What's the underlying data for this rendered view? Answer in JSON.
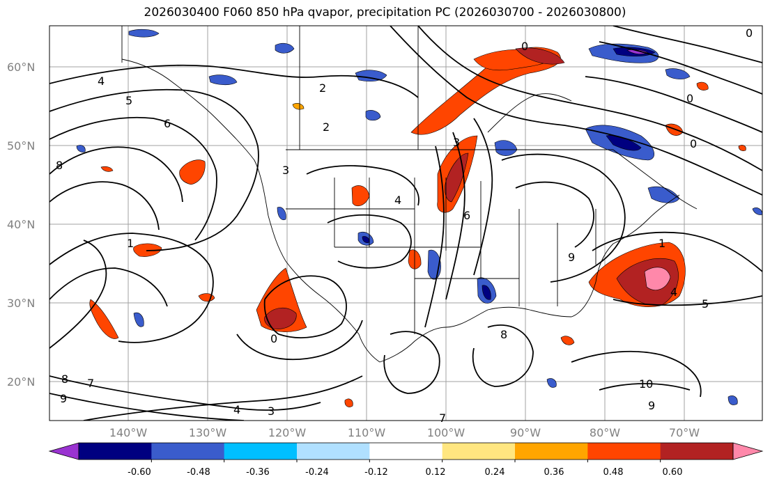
{
  "title": "2026030400 F060 850 hPa qvapor, precipitation PC (2026030700 - 2026030800)",
  "latitude_labels": [
    "60°N",
    "50°N",
    "40°N",
    "30°N",
    "20°N"
  ],
  "longitude_labels": [
    "140°W",
    "130°W",
    "120°W",
    "110°W",
    "100°W",
    "90°W",
    "80°W",
    "70°W"
  ],
  "colorbar": {
    "colors": [
      "#9a33d1",
      "#000080",
      "#3a5ccc",
      "#00bfff",
      "#b0e0ff",
      "#ffffff",
      "#ffe680",
      "#ffa500",
      "#ff4500",
      "#b22222",
      "#ff88aa"
    ],
    "tick_labels": [
      "-0.60",
      "-0.48",
      "-0.36",
      "-0.24",
      "-0.12",
      "0.12",
      "0.24",
      "0.36",
      "0.48",
      "0.60"
    ]
  },
  "contour_labels": [
    "0",
    "2",
    "2",
    "4",
    "5",
    "6",
    "8",
    "3",
    "4",
    "6",
    "1",
    "3",
    "0",
    "1",
    "4",
    "5",
    "9",
    "8",
    "7",
    "4",
    "3",
    "7",
    "9",
    "8",
    "10",
    "9",
    "0",
    "0",
    "0"
  ]
}
